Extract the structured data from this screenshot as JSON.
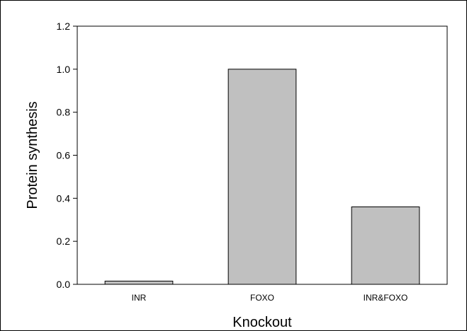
{
  "chart_data": {
    "type": "bar",
    "title": "",
    "xlabel": "Knockout",
    "ylabel": "Protein synthesis",
    "categories": [
      "INR",
      "FOXO",
      "INR&FOXO"
    ],
    "values": [
      0.015,
      1.0,
      0.36
    ],
    "ylim": [
      0,
      1.2
    ],
    "yticks": [
      0.0,
      0.2,
      0.4,
      0.6,
      0.8,
      1.0,
      1.2
    ],
    "ytick_labels": [
      "0.0",
      "0.2",
      "0.4",
      "0.6",
      "0.8",
      "1.0",
      "1.2"
    ],
    "grid": false,
    "legend": "none",
    "colors": {
      "bar_fill": "#c0c0c0",
      "bar_stroke": "#000000",
      "axis": "#000000"
    }
  }
}
